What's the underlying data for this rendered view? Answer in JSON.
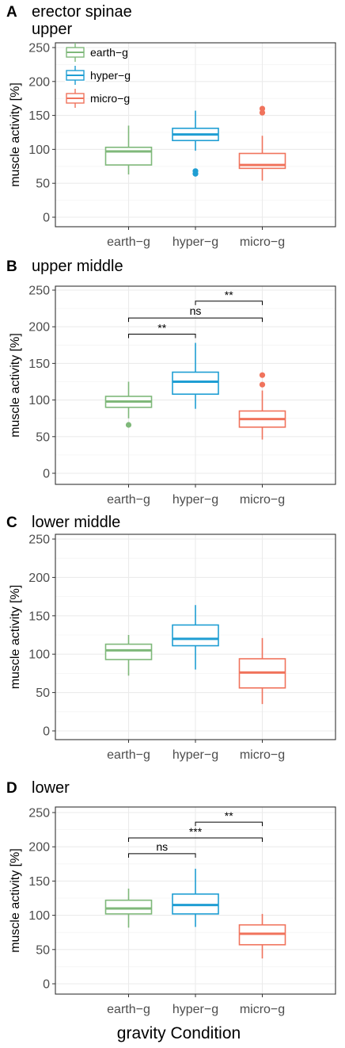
{
  "x_label": "gravity Condition",
  "chart_data": [
    {
      "type": "box",
      "panel": "A",
      "title": "erector spinae\nupper",
      "xlabel": "",
      "ylabel": "muscle activity [%]",
      "categories": [
        "earth-g",
        "hyper-g",
        "micro-g"
      ],
      "yticks": [
        0,
        50,
        100,
        150,
        200,
        250
      ],
      "ylim": [
        -15,
        255
      ],
      "colors": [
        "#7fb87a",
        "#1f9ed3",
        "#f0735c"
      ],
      "boxes": [
        {
          "category": "earth-g",
          "min": 63,
          "q1": 77,
          "median": 97,
          "q3": 103,
          "max": 135,
          "outliers": []
        },
        {
          "category": "hyper-g",
          "min": 98,
          "q1": 113,
          "median": 122,
          "q3": 131,
          "max": 157,
          "outliers": [
            64,
            68
          ]
        },
        {
          "category": "micro-g",
          "min": 54,
          "q1": 72,
          "median": 77,
          "q3": 94,
          "max": 120,
          "outliers": [
            154,
            160
          ]
        }
      ],
      "legend": {
        "position": "top-left",
        "entries": [
          "earth-g",
          "hyper-g",
          "micro-g"
        ]
      },
      "brackets": []
    },
    {
      "type": "box",
      "panel": "B",
      "title": "upper middle",
      "xlabel": "",
      "ylabel": "muscle activity [%]",
      "categories": [
        "earth-g",
        "hyper-g",
        "micro-g"
      ],
      "yticks": [
        0,
        50,
        100,
        150,
        200,
        250
      ],
      "ylim": [
        -15,
        255
      ],
      "colors": [
        "#7fb87a",
        "#1f9ed3",
        "#f0735c"
      ],
      "boxes": [
        {
          "category": "earth-g",
          "min": 75,
          "q1": 90,
          "median": 98,
          "q3": 105,
          "max": 125,
          "outliers": [
            66
          ]
        },
        {
          "category": "hyper-g",
          "min": 88,
          "q1": 108,
          "median": 125,
          "q3": 138,
          "max": 178,
          "outliers": []
        },
        {
          "category": "micro-g",
          "min": 46,
          "q1": 63,
          "median": 74,
          "q3": 85,
          "max": 113,
          "outliers": [
            121,
            134
          ]
        }
      ],
      "brackets": [
        {
          "from": "hyper-g",
          "to": "micro-g",
          "y": 235,
          "label": "**"
        },
        {
          "from": "earth-g",
          "to": "micro-g",
          "y": 212,
          "label": "ns"
        },
        {
          "from": "earth-g",
          "to": "hyper-g",
          "y": 190,
          "label": "**"
        }
      ]
    },
    {
      "type": "box",
      "panel": "C",
      "title": "lower middle",
      "xlabel": "",
      "ylabel": "muscle activity [%]",
      "categories": [
        "earth-g",
        "hyper-g",
        "micro-g"
      ],
      "yticks": [
        0,
        50,
        100,
        150,
        200,
        250
      ],
      "ylim": [
        -15,
        255
      ],
      "colors": [
        "#7fb87a",
        "#1f9ed3",
        "#f0735c"
      ],
      "boxes": [
        {
          "category": "earth-g",
          "min": 72,
          "q1": 93,
          "median": 105,
          "q3": 113,
          "max": 125,
          "outliers": []
        },
        {
          "category": "hyper-g",
          "min": 80,
          "q1": 111,
          "median": 120,
          "q3": 138,
          "max": 164,
          "outliers": []
        },
        {
          "category": "micro-g",
          "min": 35,
          "q1": 56,
          "median": 76,
          "q3": 94,
          "max": 121,
          "outliers": []
        }
      ],
      "brackets": []
    },
    {
      "type": "box",
      "panel": "D",
      "title": "lower",
      "xlabel": "",
      "ylabel": "muscle activity [%]",
      "categories": [
        "earth-g",
        "hyper-g",
        "micro-g"
      ],
      "yticks": [
        0,
        50,
        100,
        150,
        200,
        250
      ],
      "ylim": [
        -15,
        255
      ],
      "colors": [
        "#7fb87a",
        "#1f9ed3",
        "#f0735c"
      ],
      "boxes": [
        {
          "category": "earth-g",
          "min": 82,
          "q1": 102,
          "median": 110,
          "q3": 122,
          "max": 139,
          "outliers": []
        },
        {
          "category": "hyper-g",
          "min": 83,
          "q1": 102,
          "median": 115,
          "q3": 131,
          "max": 168,
          "outliers": []
        },
        {
          "category": "micro-g",
          "min": 37,
          "q1": 57,
          "median": 73,
          "q3": 86,
          "max": 102,
          "outliers": []
        }
      ],
      "brackets": [
        {
          "from": "hyper-g",
          "to": "micro-g",
          "y": 236,
          "label": "**"
        },
        {
          "from": "earth-g",
          "to": "micro-g",
          "y": 213,
          "label": "***"
        },
        {
          "from": "earth-g",
          "to": "hyper-g",
          "y": 190,
          "label": "ns"
        }
      ]
    }
  ]
}
